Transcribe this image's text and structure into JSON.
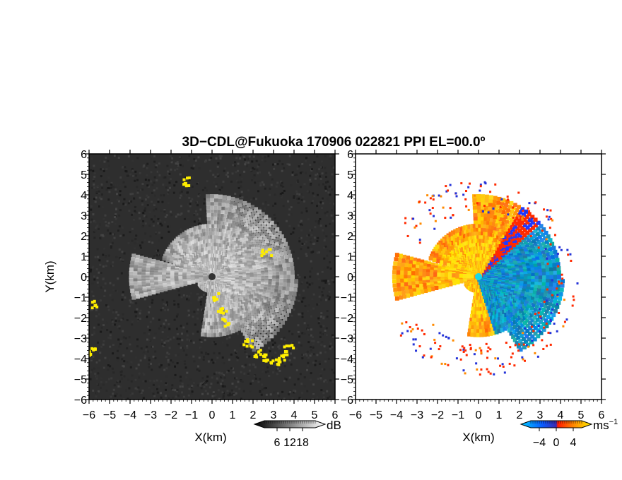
{
  "title": "3D−CDL@Fukuoka 170906 022821 PPI EL=00.0º",
  "chart_data": [
    {
      "type": "heatmap",
      "panel": "reflectivity",
      "xlabel": "X(km)",
      "ylabel": "Y(km)",
      "xlim": [
        -6,
        6
      ],
      "ylim": [
        -6,
        6
      ],
      "xticks": [
        "−6",
        "−5",
        "−4",
        "−3",
        "−2",
        "−1",
        "0",
        "1",
        "2",
        "3",
        "4",
        "5",
        "6"
      ],
      "yticks": [
        "6",
        "5",
        "4",
        "3",
        "2",
        "1",
        "0",
        "−1",
        "−2",
        "−3",
        "−4",
        "−5",
        "−6"
      ],
      "colormap": "grayscale",
      "colorbar": {
        "unit": "dB",
        "ticks": [
          "6",
          "12",
          "18"
        ],
        "range": [
          0,
          24
        ]
      },
      "background_color": "#2e2e2e",
      "flag_color": "#ffee00",
      "sector_start_deg": -150,
      "sector_end_deg": 180,
      "gap_sectors_deg": [
        [
          -170,
          -152
        ],
        [
          160,
          175
        ]
      ],
      "max_range_km": 4.2
    },
    {
      "type": "heatmap",
      "panel": "doppler_velocity",
      "xlabel": "X(km)",
      "xlim": [
        -6,
        6
      ],
      "ylim": [
        -6,
        6
      ],
      "xticks": [
        "−6",
        "−5",
        "−4",
        "−3",
        "−2",
        "−1",
        "0",
        "1",
        "2",
        "3",
        "4",
        "5",
        "6"
      ],
      "yticks": [
        "6",
        "5",
        "4",
        "3",
        "2",
        "1",
        "0",
        "−1",
        "−2",
        "−3",
        "−4",
        "−5",
        "−6"
      ],
      "colormap": [
        "#00b7ff",
        "#0050ff",
        "#2f1fc0",
        "#ff2000",
        "#ff8a00",
        "#ffee00"
      ],
      "colorbar": {
        "unit": "ms",
        "unit_exponent": "−1",
        "ticks": [
          "−4",
          "0",
          "4"
        ],
        "range": [
          -6,
          6
        ]
      },
      "toward_color": "#1e7ee6",
      "away_color": "#ff7a10",
      "max_range_km": 4.3
    }
  ]
}
